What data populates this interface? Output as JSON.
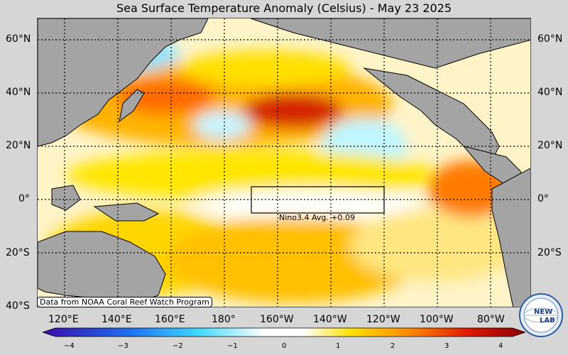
{
  "title": "Sea Surface Temperature Anomaly (Celsius) - May 23 2025",
  "lat_labels": [
    "60°N",
    "40°N",
    "20°N",
    "0°",
    "20°S",
    "40°S"
  ],
  "lon_labels": [
    "120°E",
    "140°E",
    "160°E",
    "180°",
    "160°W",
    "140°W",
    "120°W",
    "100°W",
    "80°W"
  ],
  "colorbar": {
    "ticks": [
      "−4",
      "−3",
      "−2",
      "−1",
      "0",
      "1",
      "2",
      "3",
      "4"
    ],
    "colors": [
      "#3a0aa8",
      "#1f6ff0",
      "#3fd8ff",
      "#ffffff",
      "#ffe000",
      "#ff8a00",
      "#e01a00",
      "#8a0000"
    ]
  },
  "nino_box": {
    "label": "Nino3.4 Avg. +0.09"
  },
  "credit": "Data from NOAA Coral Reef Watch Program",
  "logo": {
    "text_top": "NEW",
    "text_bottom": "LAB"
  },
  "land_color": "#a4a4a4"
}
